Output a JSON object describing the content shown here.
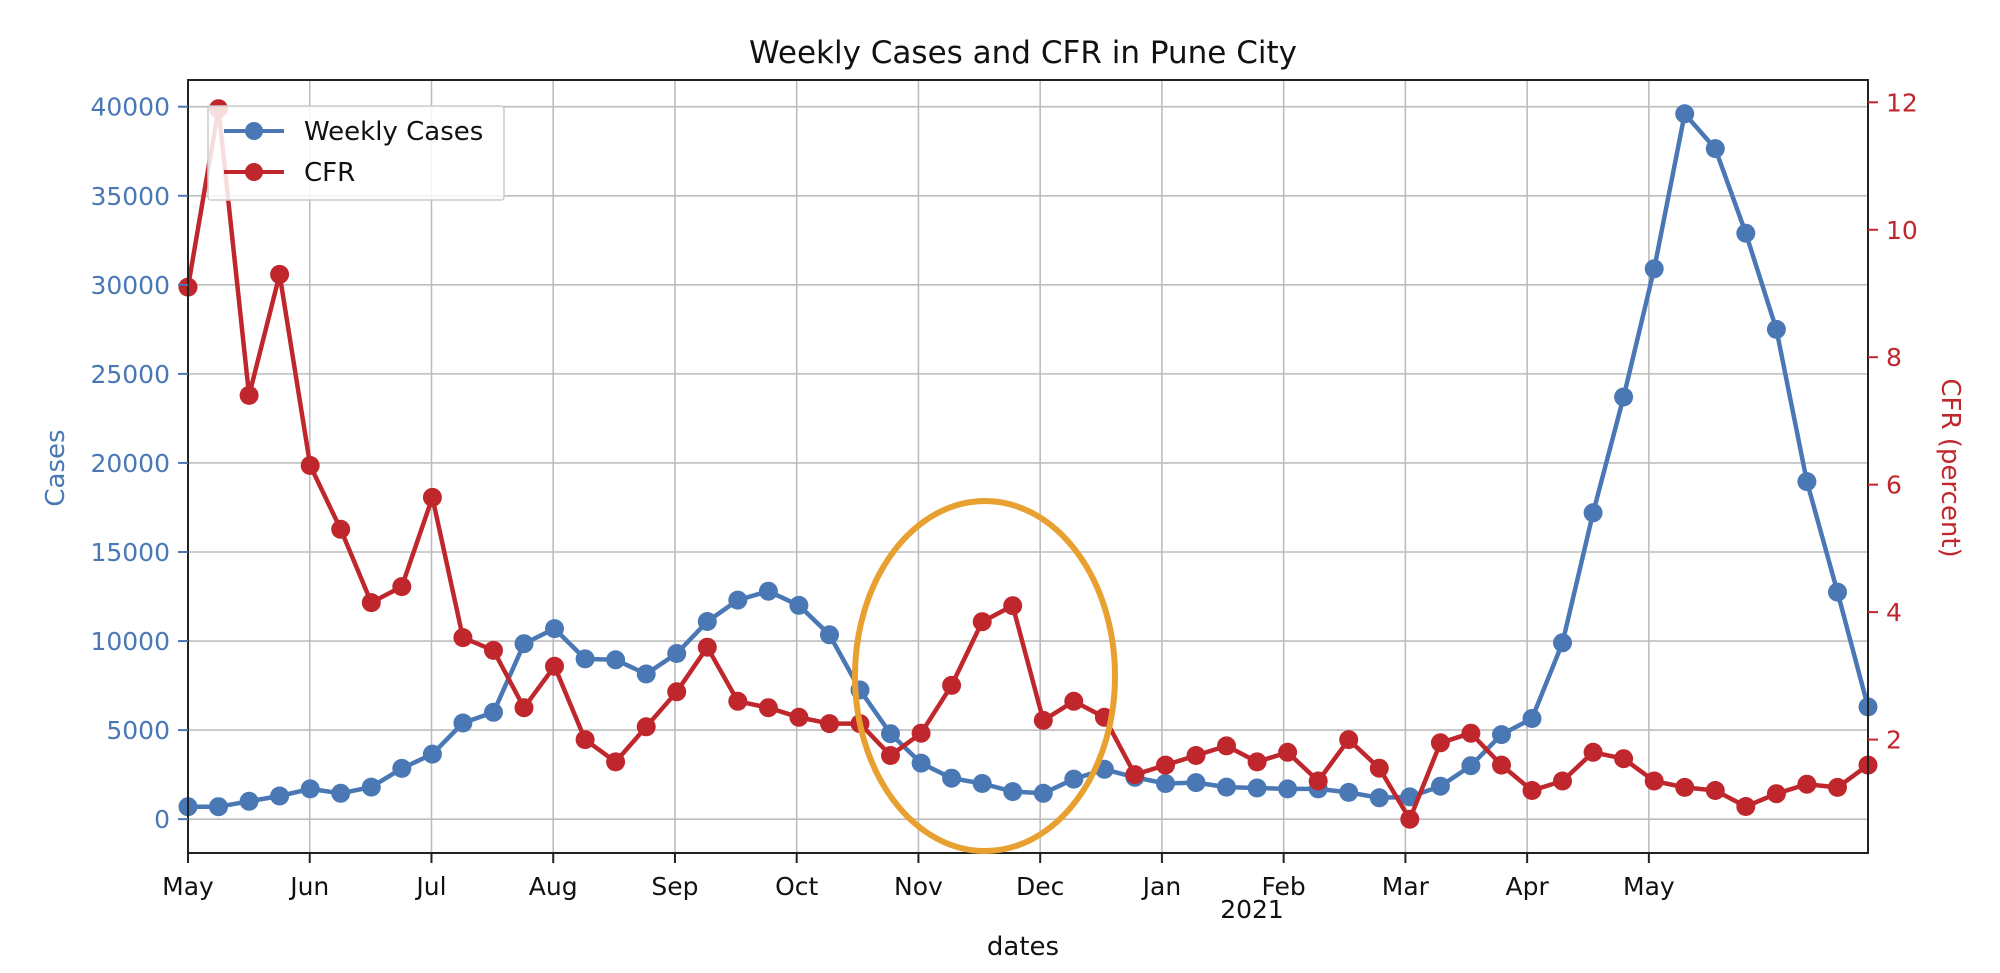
{
  "chart_data": {
    "type": "line",
    "title": "Weekly Cases and CFR in Pune City",
    "xlabel": "dates",
    "ylabel_left": "Cases",
    "ylabel_right": "CFR (percent)",
    "year_label": "2021",
    "x_ticks": [
      "May",
      "Jun",
      "Jul",
      "Aug",
      "Sep",
      "Oct",
      "Nov",
      "Dec",
      "Jan",
      "Feb",
      "Mar",
      "Apr",
      "May"
    ],
    "y_left_ticks": [
      0,
      5000,
      10000,
      15000,
      20000,
      25000,
      30000,
      35000,
      40000
    ],
    "y_right_ticks": [
      2,
      4,
      6,
      8,
      10,
      12
    ],
    "y_left_range": [
      -1900,
      41500
    ],
    "y_right_range": [
      0.22,
      12.35
    ],
    "grid": true,
    "legend_position": "top-left",
    "highlight": {
      "description_shape": "ellipse",
      "color": "#e8a030",
      "around": "Nov"
    },
    "colors": {
      "cases": "#4a78b5",
      "cfr": "#c0272d",
      "highlight": "#e8a030"
    },
    "series": [
      {
        "name": "Weekly Cases",
        "axis": "left",
        "values": [
          700,
          700,
          1000,
          1300,
          1700,
          1450,
          1800,
          2850,
          3650,
          5400,
          6000,
          9850,
          10700,
          9000,
          8950,
          8150,
          9300,
          11100,
          12300,
          12800,
          12000,
          10350,
          7250,
          4800,
          3150,
          2300,
          2000,
          1550,
          1450,
          2250,
          2800,
          2350,
          2000,
          2050,
          1800,
          1750,
          1700,
          1700,
          1500,
          1200,
          1250,
          1850,
          3000,
          4750,
          5650,
          9900,
          17200,
          23700,
          30900,
          39600,
          37650,
          32900,
          27500,
          18950,
          12750,
          6300
        ]
      },
      {
        "name": "CFR",
        "axis": "right",
        "values": [
          9.1,
          11.9,
          7.4,
          9.3,
          6.3,
          5.3,
          4.15,
          4.4,
          5.8,
          3.6,
          3.4,
          2.5,
          3.15,
          2.0,
          1.65,
          2.2,
          2.75,
          3.45,
          2.6,
          2.5,
          2.35,
          2.25,
          2.25,
          1.75,
          2.1,
          2.85,
          3.85,
          4.1,
          2.3,
          2.6,
          2.35,
          1.45,
          1.6,
          1.75,
          1.9,
          1.65,
          1.8,
          1.35,
          2.0,
          1.55,
          0.75,
          1.95,
          2.1,
          1.6,
          1.2,
          1.35,
          1.8,
          1.7,
          1.35,
          1.25,
          1.2,
          0.95,
          1.15,
          1.3,
          1.25,
          1.6
        ]
      }
    ]
  }
}
